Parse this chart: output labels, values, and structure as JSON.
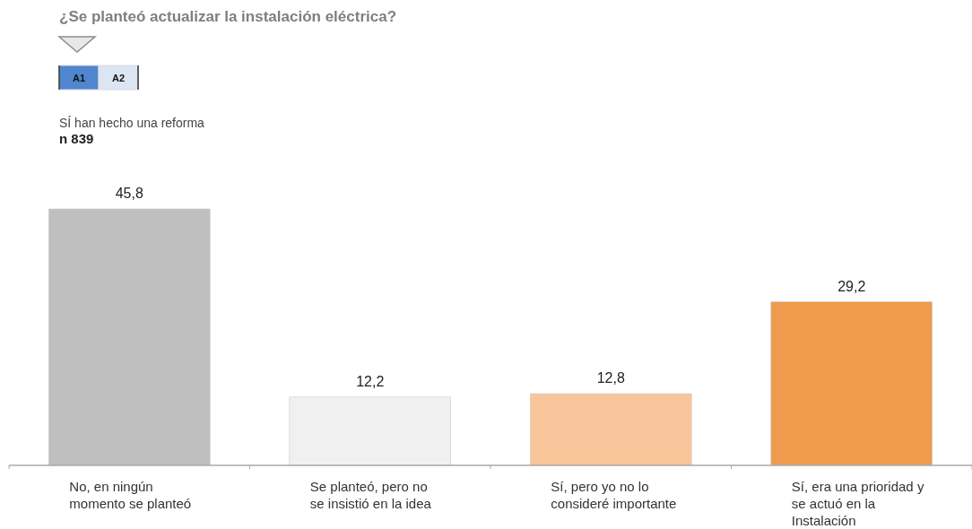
{
  "chart_data": {
    "type": "bar",
    "title": "¿Se planteó actualizar la instalación eléctrica?",
    "subtitle": "SÍ han hecho una reforma",
    "annotations": [
      "n 839",
      "A1",
      "A2"
    ],
    "categories": [
      "No, en ningún momento se planteó",
      "Se planteó, pero no se insistió en la idea",
      "Sí, pero yo no lo consideré importante",
      "Sí, era una prioridad y se actuó en la Instalación"
    ],
    "values": [
      45.8,
      12.2,
      12.8,
      29.2
    ],
    "colors": [
      "#bfbfbf",
      "#f0f0f0",
      "#f8c59a",
      "#f09a4d"
    ],
    "value_labels": [
      "45,8",
      "12,2",
      "12,8",
      "29,2"
    ]
  }
}
